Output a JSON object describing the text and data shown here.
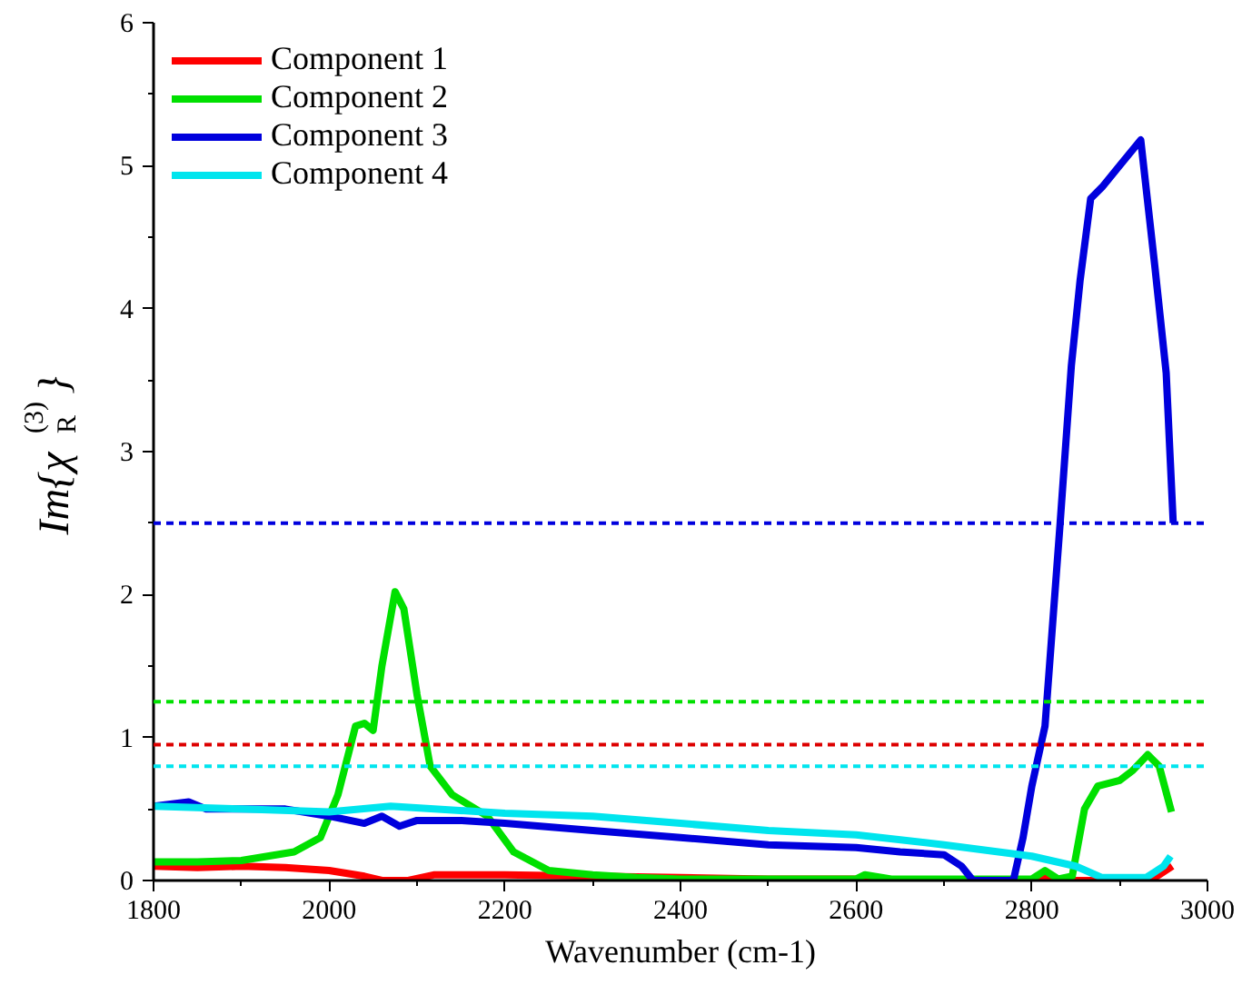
{
  "chart_data": {
    "type": "line",
    "xlabel": "Wavenumber (cm-1)",
    "ylabel": "Im{χ$_{R}$$^{(3)}$}",
    "xlim": [
      1800,
      3000
    ],
    "ylim": [
      0,
      6
    ],
    "xticks": [
      1800,
      2000,
      2200,
      2400,
      2600,
      2800,
      3000
    ],
    "yticks": [
      0,
      1,
      2,
      3,
      4,
      5,
      6
    ],
    "grid": false,
    "legend": "top left",
    "line_style": "solid",
    "marker": "none",
    "series": [
      {
        "name": "Component 1",
        "color": "#ff0000",
        "x": [
          1800,
          1850,
          1900,
          1950,
          2000,
          2040,
          2060,
          2090,
          2120,
          2200,
          2300,
          2400,
          2500,
          2600,
          2700,
          2800,
          2810,
          2830,
          2900,
          2940,
          2960
        ],
        "values": [
          0.1,
          0.09,
          0.1,
          0.09,
          0.07,
          0.03,
          0.0,
          0.0,
          0.04,
          0.04,
          0.03,
          0.02,
          0.01,
          0.01,
          0.0,
          0.0,
          0.03,
          0.0,
          0.0,
          0.02,
          0.1
        ]
      },
      {
        "name": "Component 2",
        "color": "#00e000",
        "x": [
          1800,
          1850,
          1900,
          1960,
          1990,
          2010,
          2030,
          2040,
          2050,
          2060,
          2075,
          2085,
          2100,
          2115,
          2140,
          2180,
          2210,
          2250,
          2300,
          2350,
          2400,
          2600,
          2610,
          2640,
          2800,
          2815,
          2830,
          2846,
          2860,
          2875,
          2900,
          2915,
          2932,
          2945,
          2959
        ],
        "values": [
          0.13,
          0.13,
          0.14,
          0.2,
          0.3,
          0.6,
          1.08,
          1.1,
          1.05,
          1.5,
          2.02,
          1.9,
          1.3,
          0.8,
          0.6,
          0.45,
          0.2,
          0.07,
          0.04,
          0.02,
          0.01,
          0.01,
          0.04,
          0.01,
          0.01,
          0.07,
          0.01,
          0.03,
          0.5,
          0.66,
          0.7,
          0.77,
          0.88,
          0.8,
          0.48
        ]
      },
      {
        "name": "Component 3",
        "color": "#0000dd",
        "x": [
          1800,
          1840,
          1860,
          1900,
          1950,
          2000,
          2040,
          2060,
          2080,
          2100,
          2150,
          2200,
          2300,
          2400,
          2500,
          2600,
          2650,
          2700,
          2720,
          2733,
          2779,
          2790,
          2800,
          2815,
          2832,
          2845,
          2855,
          2867,
          2880,
          2900,
          2924,
          2940,
          2953,
          2961
        ],
        "values": [
          0.52,
          0.55,
          0.5,
          0.5,
          0.5,
          0.45,
          0.4,
          0.45,
          0.38,
          0.42,
          0.42,
          0.4,
          0.35,
          0.3,
          0.25,
          0.23,
          0.2,
          0.18,
          0.1,
          0.0,
          0.0,
          0.3,
          0.66,
          1.08,
          2.48,
          3.6,
          4.2,
          4.77,
          4.85,
          5.0,
          5.18,
          4.3,
          3.55,
          2.5
        ]
      },
      {
        "name": "Component 4",
        "color": "#00e5ee",
        "x": [
          1800,
          1900,
          2000,
          2070,
          2200,
          2300,
          2400,
          2500,
          2600,
          2700,
          2800,
          2850,
          2880,
          2930,
          2950,
          2958
        ],
        "values": [
          0.52,
          0.5,
          0.48,
          0.52,
          0.47,
          0.45,
          0.4,
          0.35,
          0.32,
          0.25,
          0.17,
          0.1,
          0.02,
          0.02,
          0.1,
          0.17
        ]
      }
    ],
    "ref_lines": [
      {
        "axis": "y",
        "value": 2.5,
        "color": "#0000dd",
        "line_style": "dashed"
      },
      {
        "axis": "y",
        "value": 1.25,
        "color": "#00e000",
        "line_style": "dashed"
      },
      {
        "axis": "y",
        "value": 0.95,
        "color": "#dd0000",
        "line_style": "dashed"
      },
      {
        "axis": "y",
        "value": 0.8,
        "color": "#00e5ee",
        "line_style": "dashed"
      }
    ]
  }
}
